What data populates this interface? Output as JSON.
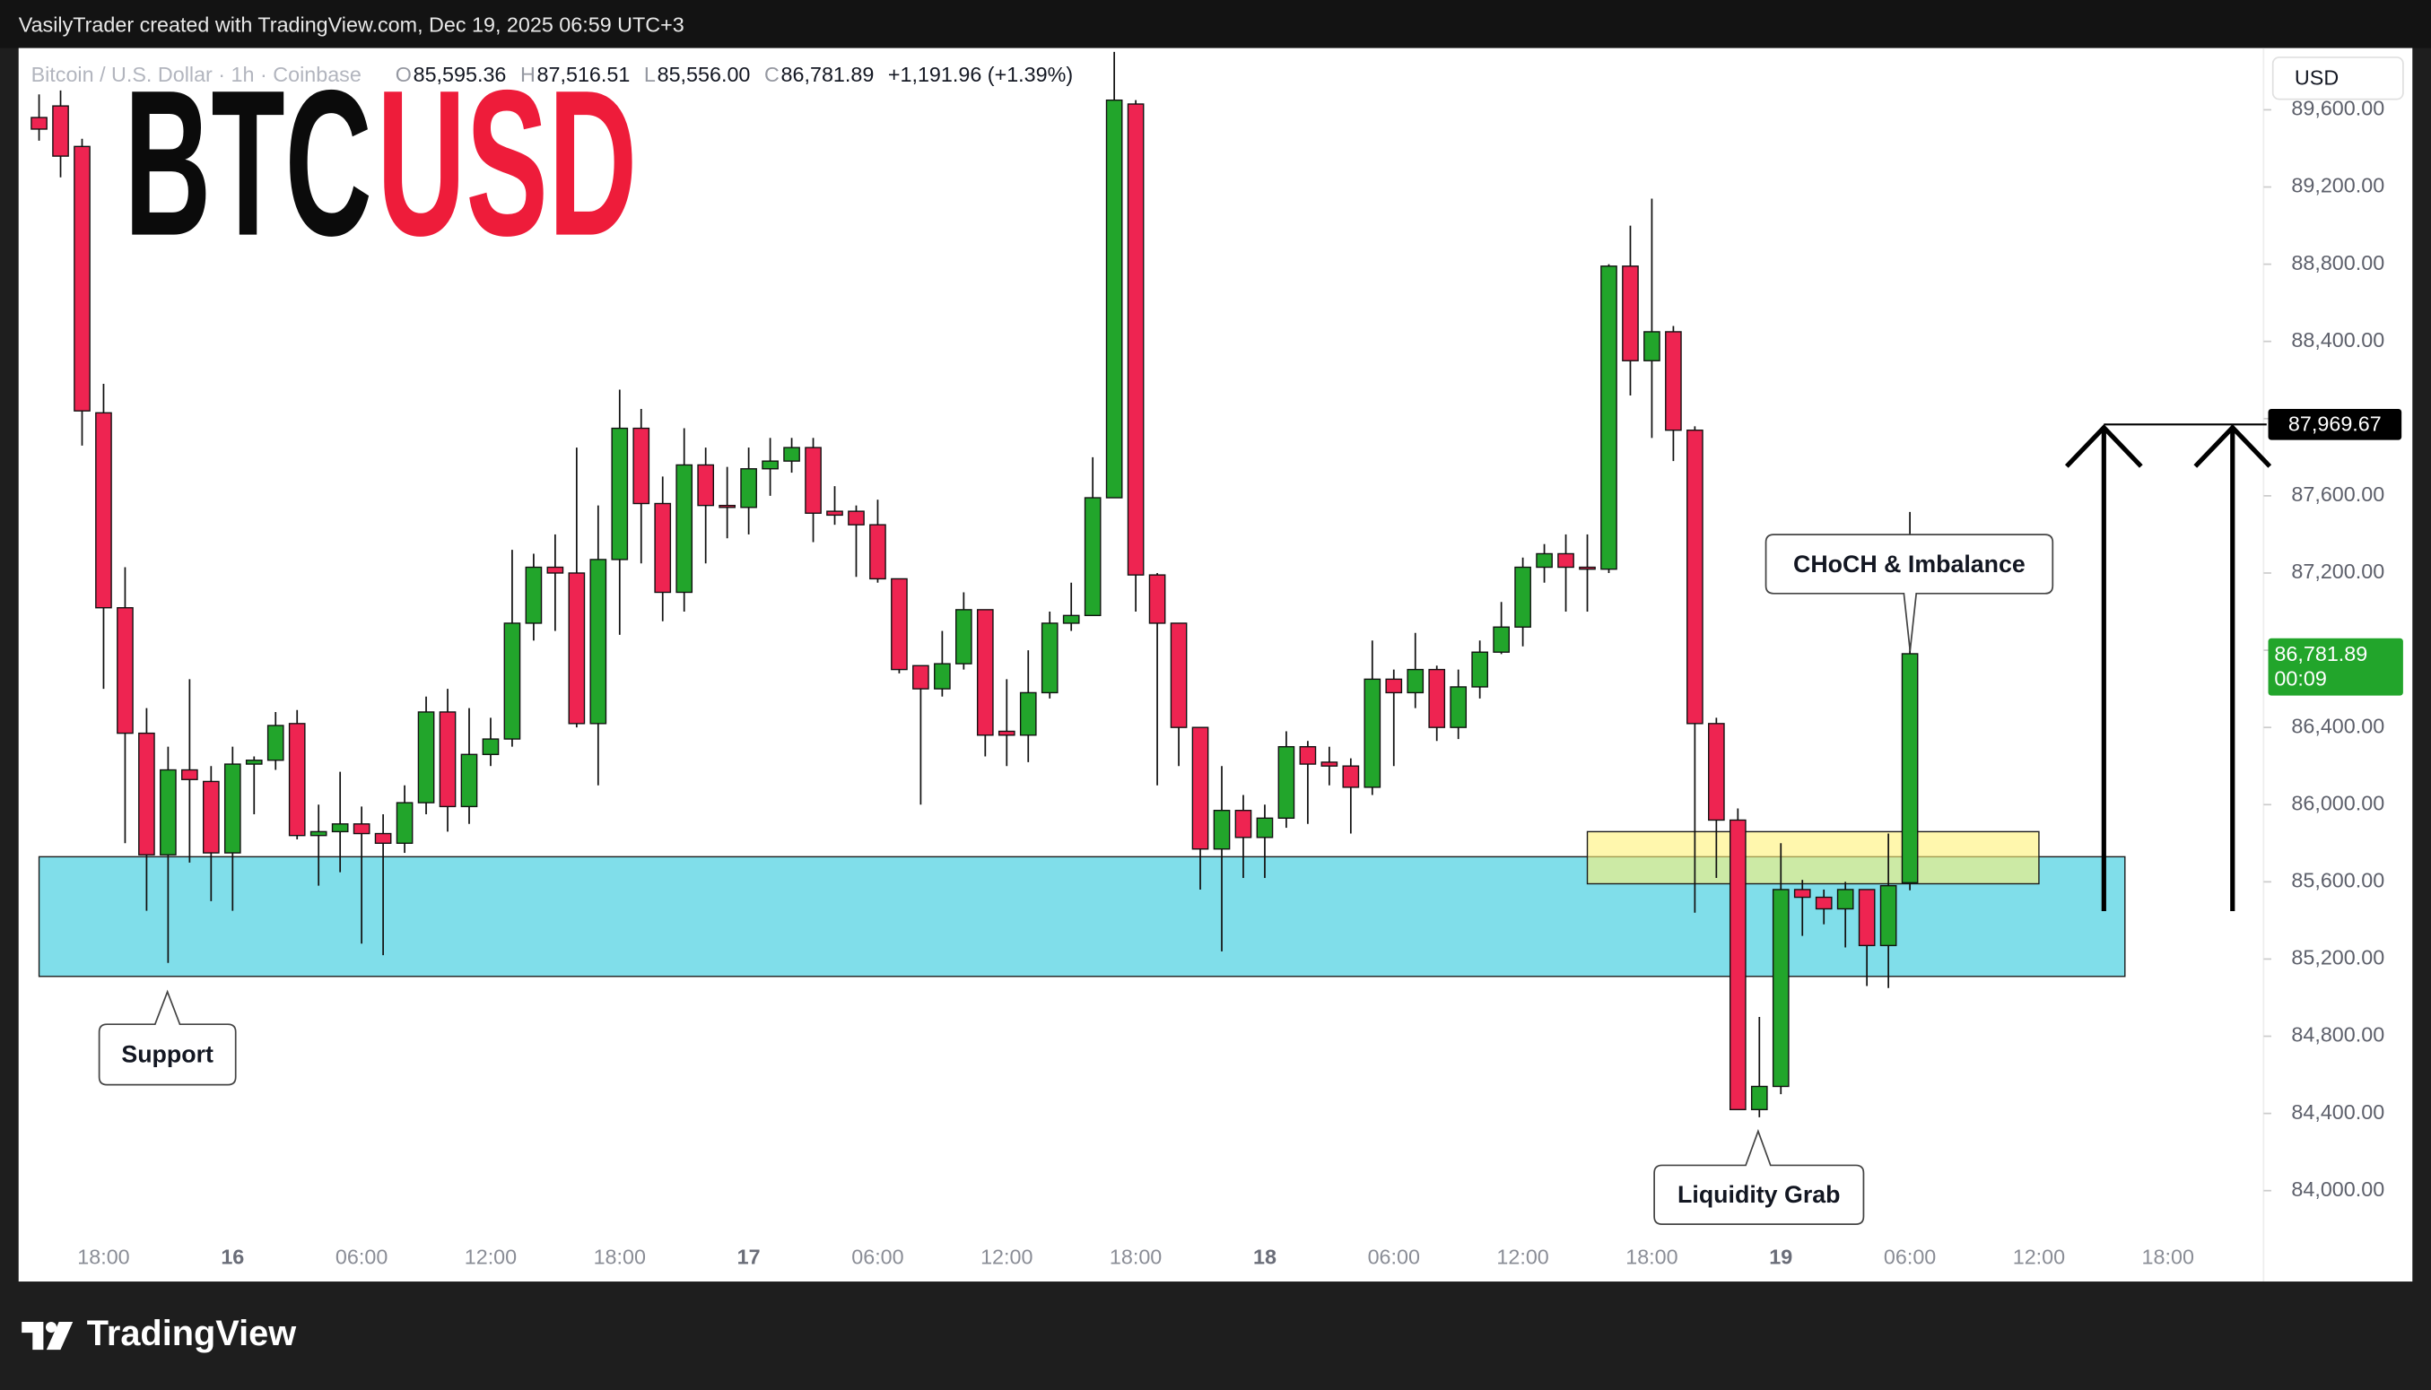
{
  "header": "VasilyTrader created with TradingView.com, Dec 19, 2025 06:59 UTC+3",
  "footer": "TradingView",
  "chart_data": {
    "type": "candlestick",
    "title": {
      "base": "BTC",
      "quote": "USD"
    },
    "legend": {
      "symbol": "Bitcoin / U.S. Dollar · 1h · Coinbase",
      "fields": [
        {
          "key": "O",
          "value": "85,595.36"
        },
        {
          "key": "H",
          "value": "87,516.51"
        },
        {
          "key": "L",
          "value": "85,556.00"
        },
        {
          "key": "C",
          "value": "86,781.89"
        }
      ],
      "change": "+1,191.96 (+1.39%)"
    },
    "currency": "USD",
    "up_color": "#22a52b",
    "down_color": "#ee2451",
    "categories": [
      null,
      null,
      null,
      "18:00",
      null,
      null,
      null,
      null,
      null,
      "16",
      null,
      null,
      null,
      null,
      null,
      "06:00",
      null,
      null,
      null,
      null,
      null,
      "12:00",
      null,
      null,
      null,
      null,
      null,
      "18:00",
      null,
      null,
      null,
      null,
      null,
      "17",
      null,
      null,
      null,
      null,
      null,
      "06:00",
      null,
      null,
      null,
      null,
      null,
      "12:00",
      null,
      null,
      null,
      null,
      null,
      "18:00",
      null,
      null,
      null,
      null,
      null,
      "18",
      null,
      null,
      null,
      null,
      null,
      "06:00",
      null,
      null,
      null,
      null,
      null,
      "12:00",
      null,
      null,
      null,
      null,
      null,
      "18:00",
      null,
      null,
      null,
      null,
      null,
      "19",
      null,
      null,
      null,
      null,
      null,
      "06:00",
      null,
      null,
      null,
      null,
      null,
      "12:00",
      null,
      null,
      null,
      null,
      null,
      "18:00",
      null,
      null,
      null,
      null
    ],
    "open": [
      89560,
      89620,
      89410,
      88030,
      87020,
      86370,
      85740,
      86180,
      86120,
      85750,
      86210,
      86230,
      86420,
      85840,
      85860,
      85900,
      85850,
      85800,
      86010,
      86480,
      85990,
      86260,
      86340,
      86940,
      87230,
      87200,
      86420,
      87270,
      87950,
      87560,
      87100,
      87760,
      87550,
      87540,
      87740,
      87780,
      87850,
      87520,
      87520,
      87450,
      87170,
      86720,
      86600,
      86730,
      87010,
      86380,
      86360,
      86580,
      86940,
      86980,
      87590,
      89630,
      87190,
      86940,
      86400,
      85770,
      85970,
      85830,
      85930,
      86300,
      86220,
      86200,
      86090,
      86650,
      86580,
      86700,
      86400,
      86610,
      86790,
      86920,
      87230,
      87300,
      87230,
      87220,
      88790,
      88300,
      88450,
      87940,
      86420,
      85920,
      84420,
      84540,
      85560,
      85520,
      85460,
      85560,
      85270,
      85595.36,
      null,
      null,
      null,
      null,
      null,
      null,
      null,
      null,
      null,
      null,
      null,
      null,
      null,
      null,
      null,
      null
    ],
    "high": [
      89680,
      89700,
      89450,
      88180,
      87230,
      86500,
      86300,
      86650,
      86200,
      86300,
      86250,
      86480,
      86490,
      86000,
      86170,
      85990,
      85950,
      86100,
      86560,
      86600,
      86500,
      86450,
      87320,
      87300,
      87400,
      87850,
      87550,
      88150,
      88050,
      87700,
      87950,
      87850,
      87750,
      87850,
      87900,
      87900,
      87900,
      87650,
      87550,
      87580,
      87170,
      86720,
      86900,
      87100,
      87010,
      86650,
      86800,
      87000,
      87150,
      87800,
      89900,
      89650,
      87200,
      86940,
      86400,
      86200,
      86050,
      86000,
      86380,
      86330,
      86300,
      86240,
      86850,
      86700,
      86890,
      86720,
      86700,
      86850,
      87050,
      87280,
      87350,
      87400,
      87400,
      88800,
      89000,
      89140,
      88480,
      87960,
      86450,
      85980,
      84900,
      85800,
      85610,
      85560,
      85600,
      85560,
      85850,
      87516.51,
      null,
      null,
      null,
      null,
      null,
      null,
      null,
      null,
      null,
      null,
      null,
      null,
      null,
      null,
      null,
      null
    ],
    "low": [
      89440,
      89250,
      87860,
      86600,
      85800,
      85450,
      85180,
      85700,
      85500,
      85450,
      85950,
      86180,
      85820,
      85580,
      85650,
      85280,
      85220,
      85750,
      85950,
      85860,
      85900,
      86200,
      86300,
      86850,
      86900,
      86400,
      86100,
      86880,
      87250,
      86950,
      87000,
      87250,
      87380,
      87400,
      87600,
      87720,
      87360,
      87450,
      87180,
      87150,
      86680,
      86000,
      86560,
      86700,
      86250,
      86200,
      86220,
      86550,
      86900,
      86980,
      87590,
      87000,
      86100,
      86200,
      85560,
      85240,
      85620,
      85620,
      85880,
      85900,
      86100,
      85850,
      86050,
      86200,
      86500,
      86330,
      86340,
      86550,
      86780,
      86820,
      87150,
      87000,
      87000,
      87200,
      88120,
      87900,
      87780,
      85440,
      85620,
      84420,
      84380,
      84500,
      85320,
      85380,
      85260,
      85060,
      85050,
      85556,
      null,
      null,
      null,
      null,
      null,
      null,
      null,
      null,
      null,
      null,
      null,
      null,
      null,
      null,
      null,
      null
    ],
    "close": [
      89500,
      89360,
      88040,
      87020,
      86370,
      85740,
      86180,
      86130,
      85750,
      86210,
      86230,
      86410,
      85840,
      85860,
      85900,
      85850,
      85800,
      86010,
      86480,
      85990,
      86260,
      86340,
      86940,
      87230,
      87200,
      86420,
      87270,
      87950,
      87560,
      87100,
      87760,
      87550,
      87540,
      87740,
      87780,
      87850,
      87510,
      87500,
      87450,
      87170,
      86700,
      86600,
      86730,
      87010,
      86360,
      86360,
      86580,
      86940,
      86980,
      87590,
      89650,
      87190,
      86940,
      86400,
      85770,
      85970,
      85830,
      85930,
      86300,
      86210,
      86200,
      86090,
      86650,
      86580,
      86700,
      86400,
      86610,
      86790,
      86920,
      87230,
      87300,
      87230,
      87220,
      88790,
      88300,
      88450,
      87940,
      86420,
      85920,
      84420,
      84540,
      85560,
      85520,
      85460,
      85560,
      85270,
      85580,
      86781.89,
      null,
      null,
      null,
      null,
      null,
      null,
      null,
      null,
      null,
      null,
      null,
      null,
      null,
      null,
      null,
      null
    ],
    "ylim": [
      83770,
      89920
    ],
    "yticks": [
      {
        "value": 84000,
        "label": "84,000.00"
      },
      {
        "value": 84400,
        "label": "84,400.00"
      },
      {
        "value": 84800,
        "label": "84,800.00"
      },
      {
        "value": 85200,
        "label": "85,200.00"
      },
      {
        "value": 85600,
        "label": "85,600.00"
      },
      {
        "value": 86000,
        "label": "86,000.00"
      },
      {
        "value": 86400,
        "label": "86,400.00"
      },
      {
        "value": 86800,
        "label": "86,800.00"
      },
      {
        "value": 87200,
        "label": "87,200.00"
      },
      {
        "value": 87600,
        "label": "87,600.00"
      },
      {
        "value": 88000,
        "label": "88,000.00"
      },
      {
        "value": 88400,
        "label": "88,400.00"
      },
      {
        "value": 88800,
        "label": "88,800.00"
      },
      {
        "value": 89200,
        "label": "89,200.00"
      },
      {
        "value": 89600,
        "label": "89,600.00"
      }
    ],
    "grid": false,
    "zones": [
      {
        "from": 0,
        "to": 97,
        "top": 85730,
        "bottom": 85110,
        "color": "#80deea"
      },
      {
        "from": 72,
        "to": 93,
        "top": 85860,
        "bottom": 85590,
        "color": "#fff176"
      }
    ],
    "target": {
      "value": 87969.67,
      "label": "87,969.67"
    },
    "last_price": {
      "value": 86781.89,
      "label": "86,781.89",
      "countdown": "00:09"
    },
    "annotations": [
      "Support",
      "Liquidity Grab",
      "CHoCH & Imbalance"
    ]
  }
}
